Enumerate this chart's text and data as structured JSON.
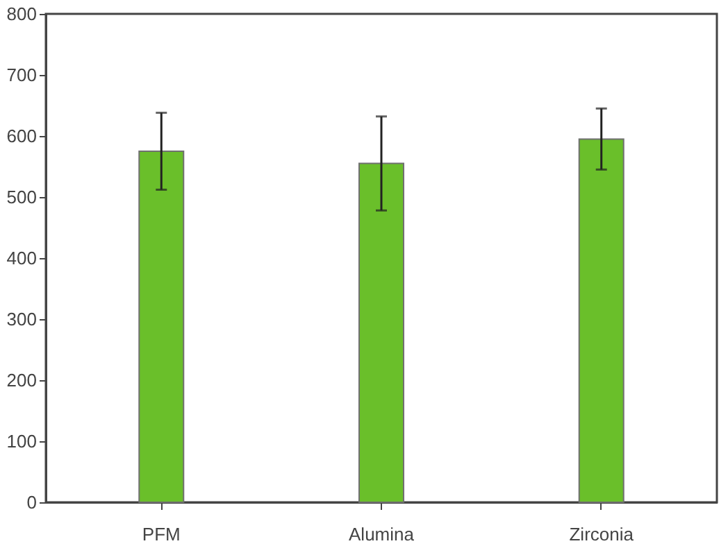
{
  "chart_data": {
    "type": "bar",
    "categories": [
      "PFM",
      "Alumina",
      "Zirconia"
    ],
    "series": [
      {
        "color": "#6abf2a",
        "values": [
          575,
          555,
          595
        ],
        "errors": [
          63,
          77,
          50
        ]
      }
    ],
    "ylim": [
      0,
      800
    ],
    "yticks": [
      0,
      100,
      200,
      300,
      400,
      500,
      600,
      700,
      800
    ],
    "grid": false
  }
}
